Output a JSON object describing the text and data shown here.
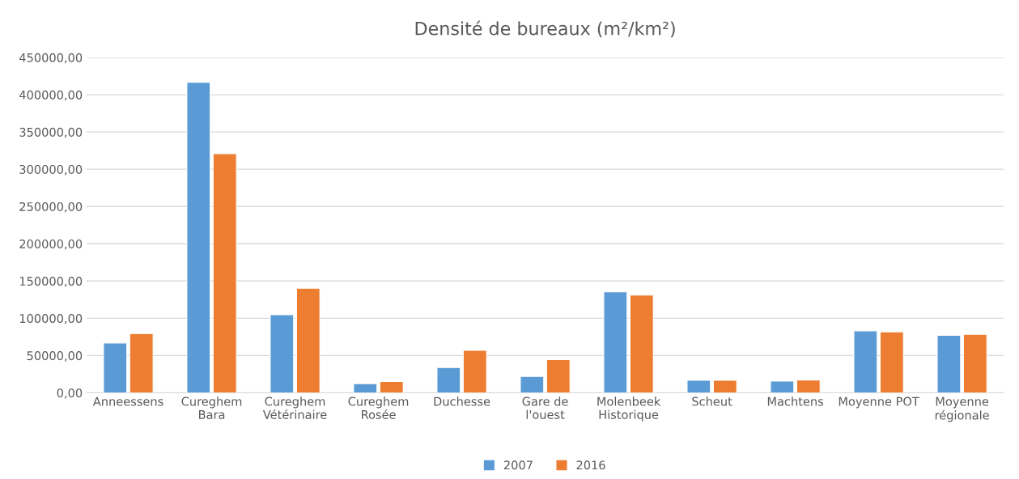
{
  "chart_data": {
    "type": "bar",
    "title": "Densité de bureaux (m²/km²)",
    "categories": [
      "Anneessens",
      "Cureghem\nBara",
      "Cureghem\nVétérinaire",
      "Cureghem\nRosée",
      "Duchesse",
      "Gare de\nl'ouest",
      "Molenbeek\nHistorique",
      "Scheut",
      "Machtens",
      "Moyenne POT",
      "Moyenne\nrégionale"
    ],
    "series": [
      {
        "name": "2007",
        "color": "#5b9bd5",
        "values": [
          66900,
          416800,
          104800,
          12300,
          34000,
          22000,
          135400,
          16800,
          15700,
          83200,
          77000
        ]
      },
      {
        "name": "2016",
        "color": "#ed7d31",
        "values": [
          79500,
          321000,
          140300,
          15200,
          57000,
          44500,
          131000,
          16800,
          17200,
          81800,
          78500
        ]
      }
    ],
    "ylim": [
      0,
      450000
    ],
    "yticks": [
      {
        "value": 0,
        "label": "0,00"
      },
      {
        "value": 50000,
        "label": "50000,00"
      },
      {
        "value": 100000,
        "label": "100000,00"
      },
      {
        "value": 150000,
        "label": "150000,00"
      },
      {
        "value": 200000,
        "label": "200000,00"
      },
      {
        "value": 250000,
        "label": "250000,00"
      },
      {
        "value": 300000,
        "label": "300000,00"
      },
      {
        "value": 350000,
        "label": "350000,00"
      },
      {
        "value": 400000,
        "label": "400000,00"
      },
      {
        "value": 450000,
        "label": "450000,00"
      }
    ],
    "grid": "y",
    "legend": "bottom"
  }
}
